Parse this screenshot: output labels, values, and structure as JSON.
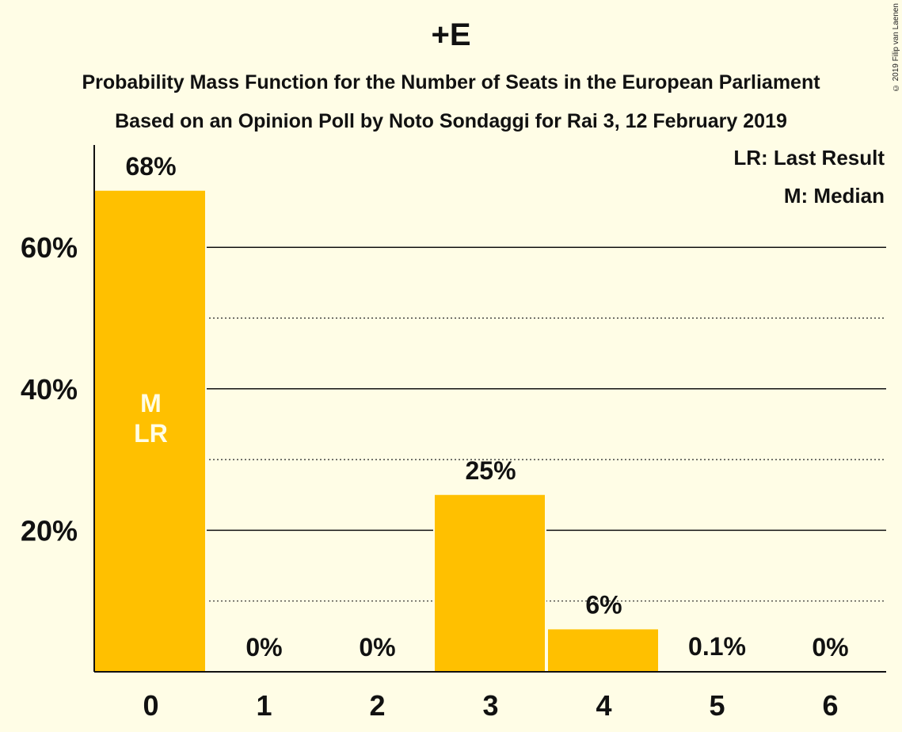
{
  "title": "+E",
  "subtitle_line1": "Probability Mass Function for the Number of Seats in the European Parliament",
  "subtitle_line2": "Based on an Opinion Poll by Noto Sondaggi for Rai 3, 12 February 2019",
  "copyright": "© 2019 Filip van Laenen",
  "legend": {
    "last_result": "LR: Last Result",
    "median": "M: Median"
  },
  "colors": {
    "bar": "#FFC000",
    "background": "#FFFDE6",
    "marker_text": "#FFFDE6"
  },
  "chart_data": {
    "type": "bar",
    "categories": [
      "0",
      "1",
      "2",
      "3",
      "4",
      "5",
      "6"
    ],
    "values": [
      68,
      0,
      0,
      25,
      6,
      0.1,
      0
    ],
    "data_labels": [
      "68%",
      "0%",
      "0%",
      "25%",
      "6%",
      "0.1%",
      "0%"
    ],
    "bar_markers": [
      [
        "M",
        "LR"
      ],
      [],
      [],
      [],
      [],
      [],
      []
    ],
    "y_ticks": [
      20,
      40,
      60
    ],
    "y_tick_labels": [
      "20%",
      "40%",
      "60%"
    ],
    "minor_grid": [
      10,
      30,
      50
    ],
    "ylim": [
      0,
      74
    ],
    "grid": true
  }
}
